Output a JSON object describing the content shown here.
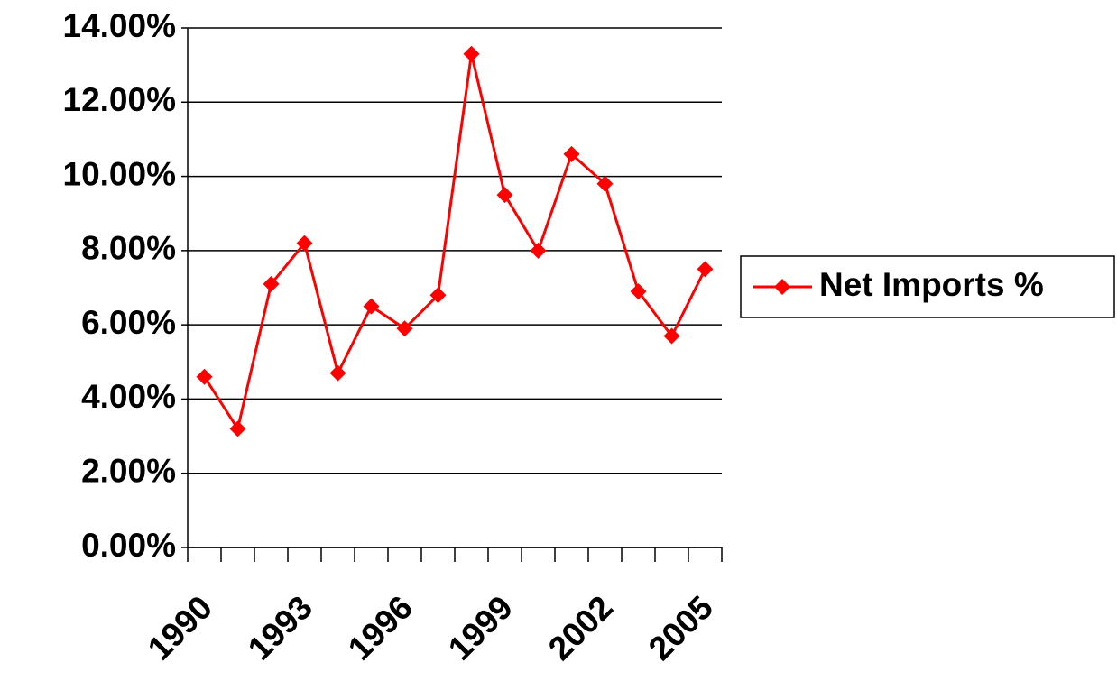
{
  "chart_data": {
    "type": "line",
    "categories": [
      "1990",
      null,
      null,
      "1993",
      null,
      null,
      "1996",
      null,
      null,
      "1999",
      null,
      null,
      "2002",
      null,
      null,
      "2005"
    ],
    "series": [
      {
        "name": "Net Imports %",
        "color": "#ff0000",
        "values": [
          4.6,
          3.2,
          7.1,
          8.2,
          4.7,
          6.5,
          5.9,
          6.8,
          13.3,
          9.5,
          8.0,
          10.6,
          9.8,
          6.9,
          5.7,
          7.5
        ]
      }
    ],
    "ylim": [
      0,
      14
    ],
    "yticks": [
      {
        "value": 0,
        "label": "0.00%"
      },
      {
        "value": 2,
        "label": "2.00%"
      },
      {
        "value": 4,
        "label": "4.00%"
      },
      {
        "value": 6,
        "label": "6.00%"
      },
      {
        "value": 8,
        "label": "8.00%"
      },
      {
        "value": 10,
        "label": "10.00%"
      },
      {
        "value": 12,
        "label": "12.00%"
      },
      {
        "value": 14,
        "label": "14.00%"
      }
    ],
    "grid": true,
    "legend": "right"
  }
}
